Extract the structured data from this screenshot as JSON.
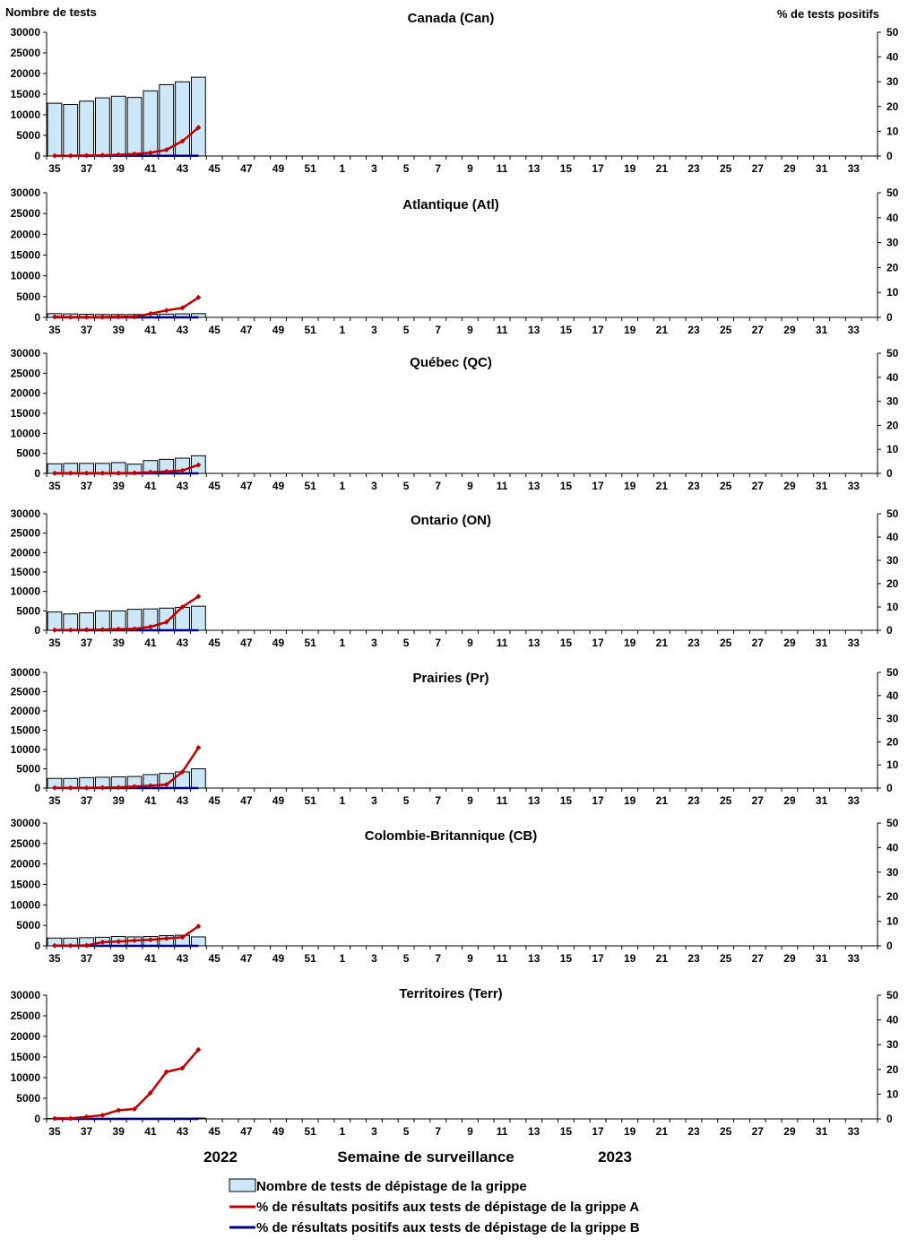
{
  "labels": {
    "left_axis_title": "Nombre de tests",
    "right_axis_title": "%  de tests positifs",
    "x_axis_title": "Semaine de surveillance",
    "year_left": "2022",
    "year_right": "2023"
  },
  "legend": {
    "tests": "Nombre de tests de dépistage de la grippe",
    "flu_a": "% de résultats positifs aux tests de dépistage de la grippe A",
    "flu_b": "% de résultats positifs aux tests de dépistage de la grippe B"
  },
  "colors": {
    "bar_fill": "#cce8f8",
    "bar_stroke": "#000000",
    "flu_a": "#c00000",
    "flu_b": "#00008b",
    "axis": "#000000"
  },
  "chart_data": [
    {
      "type": "bar",
      "title": "Canada (Can)",
      "weeks": [
        35,
        36,
        37,
        38,
        39,
        40,
        41,
        42,
        43,
        44,
        45,
        46,
        47,
        48,
        49,
        50,
        51,
        52,
        1,
        2,
        3,
        4,
        5,
        6,
        7,
        8,
        9,
        10,
        11,
        12,
        13,
        14,
        15,
        16,
        17,
        18,
        19,
        20,
        21,
        22,
        23,
        24,
        25,
        26,
        27,
        28,
        29,
        30,
        31,
        32,
        33,
        34
      ],
      "x_tick_labels": [
        "35",
        "37",
        "39",
        "41",
        "43",
        "45",
        "47",
        "49",
        "51",
        "1",
        "3",
        "5",
        "7",
        "9",
        "11",
        "13",
        "15",
        "17",
        "19",
        "21",
        "23",
        "25",
        "27",
        "29",
        "31",
        "33"
      ],
      "y_left_ticks": [
        "0",
        "5000",
        "10000",
        "15000",
        "20000",
        "25000",
        "30000"
      ],
      "y_right_ticks": [
        "0",
        "10",
        "20",
        "30",
        "40",
        "50"
      ],
      "ylim_left": [
        0,
        30000
      ],
      "ylim_right": [
        0,
        50
      ],
      "tests": [
        12800,
        12500,
        13300,
        14100,
        14500,
        14200,
        15800,
        17300,
        18000,
        19100
      ],
      "pct_a": [
        0.1,
        0.1,
        0.2,
        0.3,
        0.5,
        0.8,
        1.3,
        2.5,
        6.0,
        11.5
      ],
      "pct_b": [
        0.1,
        0.1,
        0.1,
        0.1,
        0.1,
        0.1,
        0.1,
        0.1,
        0.1,
        0.1
      ]
    },
    {
      "type": "bar",
      "title": "Atlantique (Atl)",
      "weeks": [
        35,
        36,
        37,
        38,
        39,
        40,
        41,
        42,
        43,
        44,
        45,
        46,
        47,
        48,
        49,
        50,
        51,
        52,
        1,
        2,
        3,
        4,
        5,
        6,
        7,
        8,
        9,
        10,
        11,
        12,
        13,
        14,
        15,
        16,
        17,
        18,
        19,
        20,
        21,
        22,
        23,
        24,
        25,
        26,
        27,
        28,
        29,
        30,
        31,
        32,
        33,
        34
      ],
      "x_tick_labels": [
        "35",
        "37",
        "39",
        "41",
        "43",
        "45",
        "47",
        "49",
        "51",
        "1",
        "3",
        "5",
        "7",
        "9",
        "11",
        "13",
        "15",
        "17",
        "19",
        "21",
        "23",
        "25",
        "27",
        "29",
        "31",
        "33"
      ],
      "y_left_ticks": [
        "0",
        "5000",
        "10000",
        "15000",
        "20000",
        "25000",
        "30000"
      ],
      "y_right_ticks": [
        "0",
        "10",
        "20",
        "30",
        "40",
        "50"
      ],
      "ylim_left": [
        0,
        30000
      ],
      "ylim_right": [
        0,
        50
      ],
      "tests": [
        900,
        850,
        750,
        700,
        700,
        700,
        750,
        800,
        850,
        900
      ],
      "pct_a": [
        0.2,
        0.1,
        0.1,
        0.1,
        0.2,
        0.2,
        1.5,
        2.8,
        3.8,
        8.0
      ],
      "pct_b": [
        0,
        0,
        0,
        0,
        0,
        0,
        0,
        0,
        0,
        0
      ]
    },
    {
      "type": "bar",
      "title": "Québec (QC)",
      "weeks": [
        35,
        36,
        37,
        38,
        39,
        40,
        41,
        42,
        43,
        44,
        45,
        46,
        47,
        48,
        49,
        50,
        51,
        52,
        1,
        2,
        3,
        4,
        5,
        6,
        7,
        8,
        9,
        10,
        11,
        12,
        13,
        14,
        15,
        16,
        17,
        18,
        19,
        20,
        21,
        22,
        23,
        24,
        25,
        26,
        27,
        28,
        29,
        30,
        31,
        32,
        33,
        34
      ],
      "x_tick_labels": [
        "35",
        "37",
        "39",
        "41",
        "43",
        "45",
        "47",
        "49",
        "51",
        "1",
        "3",
        "5",
        "7",
        "9",
        "11",
        "13",
        "15",
        "17",
        "19",
        "21",
        "23",
        "25",
        "27",
        "29",
        "31",
        "33"
      ],
      "y_left_ticks": [
        "0",
        "5000",
        "10000",
        "15000",
        "20000",
        "25000",
        "30000"
      ],
      "y_right_ticks": [
        "0",
        "10",
        "20",
        "30",
        "40",
        "50"
      ],
      "ylim_left": [
        0,
        30000
      ],
      "ylim_right": [
        0,
        50
      ],
      "tests": [
        2400,
        2500,
        2500,
        2500,
        2700,
        2300,
        3200,
        3500,
        3800,
        4400
      ],
      "pct_a": [
        0.1,
        0.1,
        0.1,
        0.1,
        0.1,
        0.2,
        0.5,
        0.8,
        1.2,
        3.5
      ],
      "pct_b": [
        0,
        0,
        0,
        0,
        0,
        0,
        0,
        0,
        0,
        0
      ]
    },
    {
      "type": "bar",
      "title": "Ontario (ON)",
      "weeks": [
        35,
        36,
        37,
        38,
        39,
        40,
        41,
        42,
        43,
        44,
        45,
        46,
        47,
        48,
        49,
        50,
        51,
        52,
        1,
        2,
        3,
        4,
        5,
        6,
        7,
        8,
        9,
        10,
        11,
        12,
        13,
        14,
        15,
        16,
        17,
        18,
        19,
        20,
        21,
        22,
        23,
        24,
        25,
        26,
        27,
        28,
        29,
        30,
        31,
        32,
        33,
        34
      ],
      "x_tick_labels": [
        "35",
        "37",
        "39",
        "41",
        "43",
        "45",
        "47",
        "49",
        "51",
        "1",
        "3",
        "5",
        "7",
        "9",
        "11",
        "13",
        "15",
        "17",
        "19",
        "21",
        "23",
        "25",
        "27",
        "29",
        "31",
        "33"
      ],
      "y_left_ticks": [
        "0",
        "5000",
        "10000",
        "15000",
        "20000",
        "25000",
        "30000"
      ],
      "y_right_ticks": [
        "0",
        "10",
        "20",
        "30",
        "40",
        "50"
      ],
      "ylim_left": [
        0,
        30000
      ],
      "ylim_right": [
        0,
        50
      ],
      "tests": [
        4700,
        4200,
        4500,
        5000,
        5000,
        5400,
        5500,
        5700,
        5900,
        6200
      ],
      "pct_a": [
        0.1,
        0.1,
        0.2,
        0.3,
        0.5,
        0.6,
        1.5,
        3.5,
        10.0,
        14.5
      ],
      "pct_b": [
        0,
        0,
        0,
        0,
        0,
        0,
        0,
        0,
        0,
        0
      ]
    },
    {
      "type": "bar",
      "title": "Prairies (Pr)",
      "weeks": [
        35,
        36,
        37,
        38,
        39,
        40,
        41,
        42,
        43,
        44,
        45,
        46,
        47,
        48,
        49,
        50,
        51,
        52,
        1,
        2,
        3,
        4,
        5,
        6,
        7,
        8,
        9,
        10,
        11,
        12,
        13,
        14,
        15,
        16,
        17,
        18,
        19,
        20,
        21,
        22,
        23,
        24,
        25,
        26,
        27,
        28,
        29,
        30,
        31,
        32,
        33,
        34
      ],
      "x_tick_labels": [
        "35",
        "37",
        "39",
        "41",
        "43",
        "45",
        "47",
        "49",
        "51",
        "1",
        "3",
        "5",
        "7",
        "9",
        "11",
        "13",
        "15",
        "17",
        "19",
        "21",
        "23",
        "25",
        "27",
        "29",
        "31",
        "33"
      ],
      "y_left_ticks": [
        "0",
        "5000",
        "10000",
        "15000",
        "20000",
        "25000",
        "30000"
      ],
      "y_right_ticks": [
        "0",
        "10",
        "20",
        "30",
        "40",
        "50"
      ],
      "ylim_left": [
        0,
        30000
      ],
      "ylim_right": [
        0,
        50
      ],
      "tests": [
        2500,
        2500,
        2700,
        2800,
        2900,
        3000,
        3500,
        3800,
        4200,
        5000
      ],
      "pct_a": [
        0.1,
        0.1,
        0.1,
        0.2,
        0.3,
        0.7,
        1.0,
        1.5,
        7.0,
        17.5
      ],
      "pct_b": [
        0,
        0,
        0,
        0,
        0,
        0,
        0,
        0,
        0,
        0
      ]
    },
    {
      "type": "bar",
      "title": "Colombie-Britannique (CB)",
      "weeks": [
        35,
        36,
        37,
        38,
        39,
        40,
        41,
        42,
        43,
        44,
        45,
        46,
        47,
        48,
        49,
        50,
        51,
        52,
        1,
        2,
        3,
        4,
        5,
        6,
        7,
        8,
        9,
        10,
        11,
        12,
        13,
        14,
        15,
        16,
        17,
        18,
        19,
        20,
        21,
        22,
        23,
        24,
        25,
        26,
        27,
        28,
        29,
        30,
        31,
        32,
        33,
        34
      ],
      "x_tick_labels": [
        "35",
        "37",
        "39",
        "41",
        "43",
        "45",
        "47",
        "49",
        "51",
        "1",
        "3",
        "5",
        "7",
        "9",
        "11",
        "13",
        "15",
        "17",
        "19",
        "21",
        "23",
        "25",
        "27",
        "29",
        "31",
        "33"
      ],
      "y_left_ticks": [
        "0",
        "5000",
        "10000",
        "15000",
        "20000",
        "25000",
        "30000"
      ],
      "y_right_ticks": [
        "0",
        "10",
        "20",
        "30",
        "40",
        "50"
      ],
      "ylim_left": [
        0,
        30000
      ],
      "ylim_right": [
        0,
        50
      ],
      "tests": [
        1900,
        1900,
        2000,
        2100,
        2300,
        2200,
        2300,
        2500,
        2600,
        2200
      ],
      "pct_a": [
        0.1,
        0.1,
        0.2,
        1.5,
        1.8,
        2.2,
        2.5,
        3.0,
        3.5,
        8.0
      ],
      "pct_b": [
        0,
        0,
        0,
        0,
        0,
        0,
        0,
        0,
        0,
        0
      ]
    },
    {
      "type": "bar",
      "title": "Territoires (Terr)",
      "weeks": [
        35,
        36,
        37,
        38,
        39,
        40,
        41,
        42,
        43,
        44,
        45,
        46,
        47,
        48,
        49,
        50,
        51,
        52,
        1,
        2,
        3,
        4,
        5,
        6,
        7,
        8,
        9,
        10,
        11,
        12,
        13,
        14,
        15,
        16,
        17,
        18,
        19,
        20,
        21,
        22,
        23,
        24,
        25,
        26,
        27,
        28,
        29,
        30,
        31,
        32,
        33,
        34
      ],
      "x_tick_labels": [
        "35",
        "37",
        "39",
        "41",
        "43",
        "45",
        "47",
        "49",
        "51",
        "1",
        "3",
        "5",
        "7",
        "9",
        "11",
        "13",
        "15",
        "17",
        "19",
        "21",
        "23",
        "25",
        "27",
        "29",
        "31",
        "33"
      ],
      "y_left_ticks": [
        "0",
        "5000",
        "10000",
        "15000",
        "20000",
        "25000",
        "30000"
      ],
      "y_right_ticks": [
        "0",
        "10",
        "20",
        "30",
        "40",
        "50"
      ],
      "ylim_left": [
        0,
        30000
      ],
      "ylim_right": [
        0,
        50
      ],
      "tests": [
        100,
        100,
        120,
        130,
        150,
        150,
        160,
        170,
        180,
        200
      ],
      "pct_a": [
        0.2,
        0.2,
        0.8,
        1.5,
        3.5,
        4.0,
        10.5,
        19.0,
        20.5,
        28.0
      ],
      "pct_b": [
        0,
        0,
        0,
        0,
        0,
        0,
        0,
        0,
        0,
        0
      ]
    }
  ]
}
